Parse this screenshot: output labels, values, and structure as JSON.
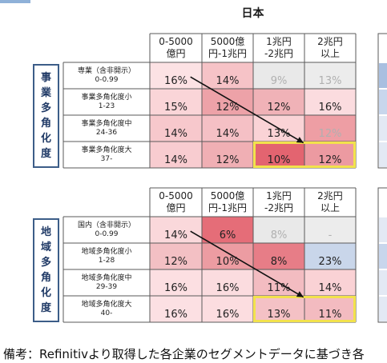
{
  "title": "日本",
  "column_headers": [
    "0-5000\n億円",
    "5000億\n円-1兆円",
    "1兆円\n-2兆円",
    "2兆円\n以上"
  ],
  "footnote": "備考：Refinitivより取得した各企業のセグメントデータに基づき各",
  "colors": {
    "grid_line": "#5a5a5a",
    "frame": "#3c5d88",
    "highlight": "#f2e24c",
    "arrow": "#111111",
    "faded_text": "#b0b0b0"
  },
  "chart_data": [
    {
      "type": "heatmap",
      "label": "事業多角化度",
      "columns": [
        "0-5000億円",
        "5000億円-1兆円",
        "1兆円-2兆円",
        "2兆円以上"
      ],
      "rows": [
        {
          "label": "専業（含非開示）\n0-0.99",
          "values": [
            "16%",
            "14%",
            "9%",
            "13%"
          ],
          "faded": [
            false,
            false,
            true,
            true
          ],
          "colors": [
            "#fce2e4",
            "#f6c3c7",
            "#e9e9e9",
            "#ececec"
          ]
        },
        {
          "label": "事業多角化度小\n1-23",
          "values": [
            "15%",
            "12%",
            "12%",
            "16%"
          ],
          "faded": [
            false,
            false,
            false,
            false
          ],
          "colors": [
            "#fad5d8",
            "#eda2a8",
            "#f0b2b7",
            "#fbdcdf"
          ]
        },
        {
          "label": "事業多角化度中\n24-36",
          "values": [
            "14%",
            "14%",
            "13%",
            "12%"
          ],
          "faded": [
            false,
            false,
            false,
            true
          ],
          "colors": [
            "#f7c8cc",
            "#f5c0c5",
            "#fad3d6",
            "#ee9ea4"
          ]
        },
        {
          "label": "事業多角化度大\n37-",
          "values": [
            "14%",
            "12%",
            "10%",
            "12%"
          ],
          "faded": [
            false,
            false,
            false,
            false
          ],
          "colors": [
            "#f8ccd0",
            "#f0afb4",
            "#e36470",
            "#ec9aa1"
          ]
        }
      ],
      "arrow": {
        "from": {
          "row": 0,
          "col": 0
        },
        "to": {
          "row": 3,
          "col": 2
        }
      },
      "highlight": {
        "row": 3,
        "cols": [
          2,
          3
        ]
      }
    },
    {
      "type": "heatmap",
      "label": "地域多角化度",
      "columns": [
        "0-5000億円",
        "5000億円-1兆円",
        "1兆円-2兆円",
        "2兆円以上"
      ],
      "rows": [
        {
          "label": "国内（含非開示）\n0-0.99",
          "values": [
            "14%",
            "6%",
            "8%",
            "-"
          ],
          "faded": [
            false,
            false,
            true,
            true
          ],
          "colors": [
            "#fad8db",
            "#e56d78",
            "#e9e9e9",
            "#ececec"
          ]
        },
        {
          "label": "地域多角化度小\n1-28",
          "values": [
            "12%",
            "10%",
            "8%",
            "23%"
          ],
          "faded": [
            false,
            false,
            false,
            false
          ],
          "colors": [
            "#f3c0c4",
            "#ec9ca2",
            "#e77d87",
            "#c9d6ea"
          ]
        },
        {
          "label": "地域多角化度中\n29-39",
          "values": [
            "16%",
            "16%",
            "11%",
            "14%"
          ],
          "faded": [
            false,
            false,
            false,
            false
          ],
          "colors": [
            "#fcdfe2",
            "#fbdcdf",
            "#f3bcc1",
            "#fad2d5"
          ]
        },
        {
          "label": "地域多角化度大\n40-",
          "values": [
            "16%",
            "16%",
            "13%",
            "11%"
          ],
          "faded": [
            false,
            false,
            false,
            false
          ],
          "colors": [
            "#fce0e3",
            "#fcdde0",
            "#f4c1c5",
            "#f3bbc0"
          ]
        }
      ],
      "arrow": {
        "from": {
          "row": 0,
          "col": 0
        },
        "to": {
          "row": 3,
          "col": 2
        }
      },
      "highlight": {
        "row": 3,
        "cols": [
          2,
          3
        ]
      }
    }
  ]
}
